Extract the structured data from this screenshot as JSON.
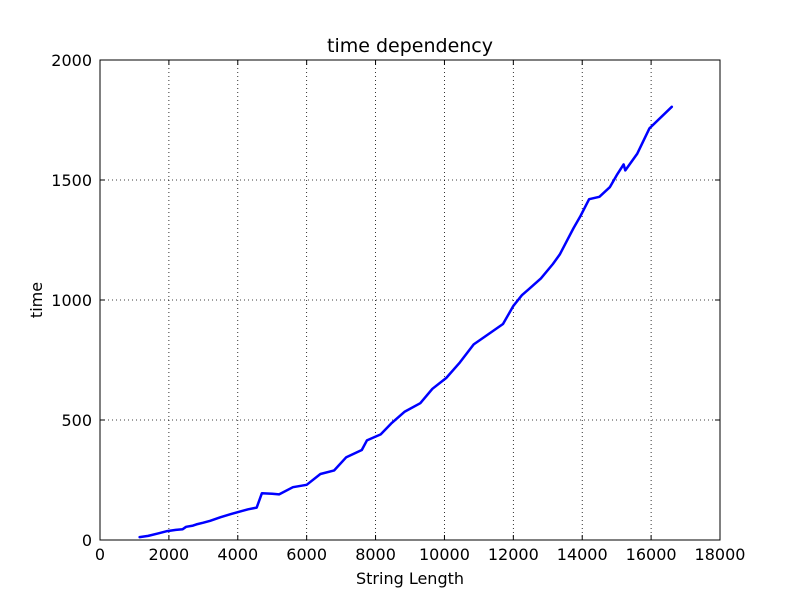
{
  "chart_data": {
    "type": "line",
    "title": "time dependency",
    "xlabel": "String Length",
    "ylabel": "time",
    "xlim": [
      0,
      18000
    ],
    "ylim": [
      0,
      2000
    ],
    "xticks": [
      0,
      2000,
      4000,
      6000,
      8000,
      10000,
      12000,
      14000,
      16000,
      18000
    ],
    "yticks": [
      0,
      500,
      1000,
      1500,
      2000
    ],
    "grid": true,
    "series": [
      {
        "color": "#0000ff",
        "x": [
          1150,
          1400,
          1700,
          1950,
          2200,
          2400,
          2500,
          2700,
          2800,
          3000,
          3200,
          3500,
          3800,
          4100,
          4300,
          4550,
          4700,
          5000,
          5200,
          5600,
          6000,
          6400,
          6800,
          7150,
          7600,
          7750,
          8150,
          8450,
          8850,
          9300,
          9650,
          10050,
          10450,
          10850,
          11300,
          11700,
          12000,
          12250,
          12450,
          12800,
          13150,
          13350,
          13550,
          13750,
          13950,
          14200,
          14500,
          14800,
          15000,
          15200,
          15250,
          15600,
          15950,
          16600
        ],
        "y": [
          12,
          17,
          28,
          37,
          42,
          45,
          55,
          60,
          65,
          72,
          80,
          95,
          108,
          120,
          128,
          135,
          195,
          193,
          190,
          220,
          230,
          275,
          290,
          345,
          375,
          415,
          440,
          485,
          535,
          570,
          630,
          675,
          740,
          815,
          860,
          900,
          975,
          1020,
          1045,
          1090,
          1150,
          1190,
          1245,
          1300,
          1350,
          1420,
          1430,
          1470,
          1520,
          1565,
          1540,
          1610,
          1715,
          1805
        ]
      }
    ]
  }
}
